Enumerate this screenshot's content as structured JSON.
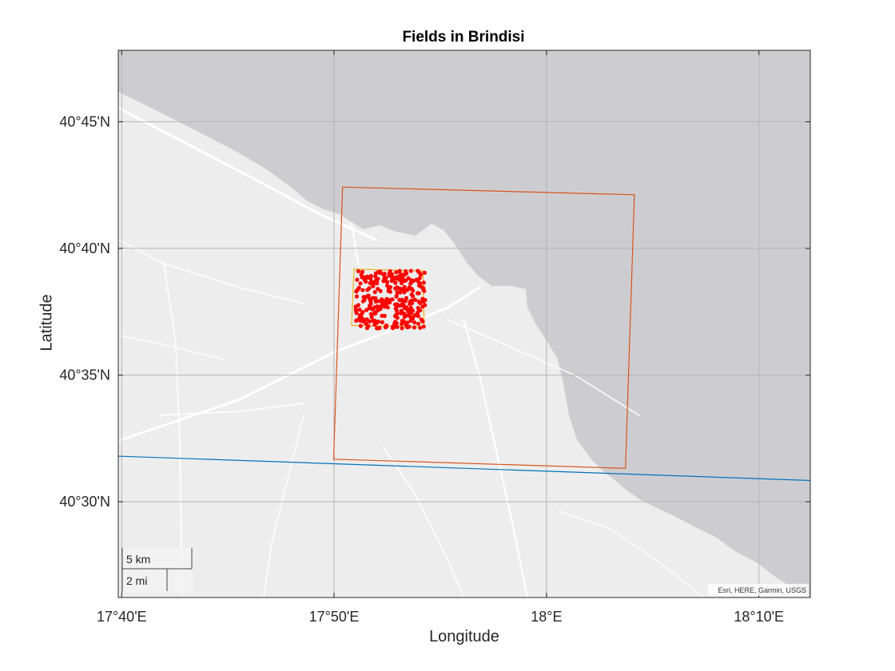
{
  "title": "Fields in Brindisi",
  "xlabel": "Longitude",
  "ylabel": "Latitude",
  "x_ticks": [
    {
      "value": 17.6667,
      "label": "17°40'E"
    },
    {
      "value": 17.8333,
      "label": "17°50'E"
    },
    {
      "value": 18.0,
      "label": "18°E"
    },
    {
      "value": 18.1667,
      "label": "18°10'E"
    }
  ],
  "y_ticks": [
    {
      "value": 40.75,
      "label": "40°45'N"
    },
    {
      "value": 40.6667,
      "label": "40°40'N"
    },
    {
      "value": 40.5833,
      "label": "40°35'N"
    },
    {
      "value": 40.5,
      "label": "40°30'N"
    }
  ],
  "scale_bar": {
    "km_label": "5 km",
    "mi_label": "2 mi"
  },
  "attribution": "Esri, HERE, Garmin, USGS",
  "colors": {
    "land": "#ededed",
    "sea": "#cdcdd1",
    "road": "#ffffff",
    "grid": "#b4b4b4",
    "outer_box": "#d95319",
    "inner_box": "#edb120",
    "points": "#ff0000",
    "line": "#0072bd"
  },
  "chart_data": {
    "type": "scatter",
    "title": "Fields in Brindisi",
    "xlabel": "Longitude",
    "ylabel": "Latitude",
    "xlim": [
      17.664,
      18.207
    ],
    "ylim": [
      40.437,
      40.797
    ],
    "grid": true,
    "outer_box": [
      [
        17.84,
        40.707
      ],
      [
        18.069,
        40.702
      ],
      [
        18.062,
        40.522
      ],
      [
        17.833,
        40.528
      ]
    ],
    "inner_box": [
      [
        17.849,
        40.653
      ],
      [
        17.903,
        40.652
      ],
      [
        17.904,
        40.615
      ],
      [
        17.847,
        40.616
      ]
    ],
    "line": [
      [
        17.664,
        40.53
      ],
      [
        18.207,
        40.514
      ]
    ],
    "points_extent": {
      "lon": [
        17.85,
        17.905
      ],
      "lat": [
        40.614,
        40.652
      ]
    },
    "points_count": 300
  }
}
